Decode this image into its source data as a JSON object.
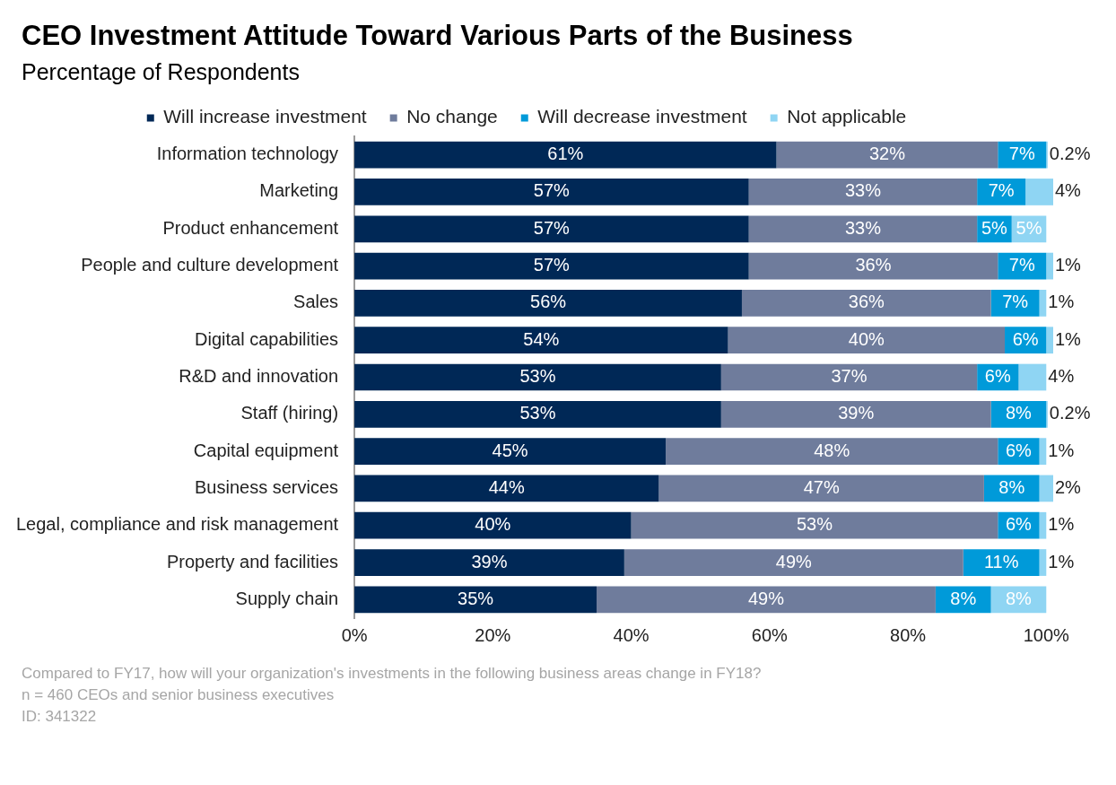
{
  "chart_data": {
    "type": "bar",
    "orientation": "horizontal",
    "stacked": true,
    "title": "CEO Investment Attitude Toward Various Parts of the Business",
    "subtitle": "Percentage of Respondents",
    "categories": [
      "Information technology",
      "Marketing",
      "Product enhancement",
      "People and culture development",
      "Sales",
      "Digital capabilities",
      "R&D and innovation",
      "Staff (hiring)",
      "Capital equipment",
      "Business services",
      "Legal, compliance and risk management",
      "Property and facilities",
      "Supply chain"
    ],
    "series": [
      {
        "name": "Will increase investment",
        "color": "#002856",
        "values": [
          61,
          57,
          57,
          57,
          56,
          54,
          53,
          53,
          45,
          44,
          40,
          39,
          35
        ],
        "value_labels": [
          "61%",
          "57%",
          "57%",
          "57%",
          "56%",
          "54%",
          "53%",
          "53%",
          "45%",
          "44%",
          "40%",
          "39%",
          "35%"
        ]
      },
      {
        "name": "No change",
        "color": "#6f7c9c",
        "values": [
          32,
          33,
          33,
          36,
          36,
          40,
          37,
          39,
          48,
          47,
          53,
          49,
          49
        ],
        "value_labels": [
          "32%",
          "33%",
          "33%",
          "36%",
          "36%",
          "40%",
          "37%",
          "39%",
          "48%",
          "47%",
          "53%",
          "49%",
          "49%"
        ]
      },
      {
        "name": "Will decrease investment",
        "color": "#009ad9",
        "values": [
          7,
          7,
          5,
          7,
          7,
          6,
          6,
          8,
          6,
          8,
          6,
          11,
          8
        ],
        "value_labels": [
          "7%",
          "7%",
          "5%",
          "7%",
          "7%",
          "6%",
          "6%",
          "8%",
          "6%",
          "8%",
          "6%",
          "11%",
          "8%"
        ]
      },
      {
        "name": "Not applicable",
        "color": "#8fd5f3",
        "values": [
          0.2,
          4,
          5,
          1,
          1,
          1,
          4,
          0.2,
          1,
          2,
          1,
          1,
          8
        ],
        "value_labels": [
          "0.2%",
          "4%",
          "5%",
          "1%",
          "1%",
          "1%",
          "4%",
          "0.2%",
          "1%",
          "2%",
          "1%",
          "1%",
          "8%"
        ]
      }
    ],
    "xlim": [
      0,
      101
    ],
    "xticks": [
      {
        "value": 0,
        "label": "0%"
      },
      {
        "value": 20,
        "label": "20%"
      },
      {
        "value": 40,
        "label": "40%"
      },
      {
        "value": 60,
        "label": "60%"
      },
      {
        "value": 80,
        "label": "80%"
      },
      {
        "value": 100,
        "label": "100%"
      }
    ],
    "grid": false,
    "legend": "top",
    "annotations": [
      "Compared to FY17, how will your organization's investments in the following business areas change in FY18?",
      "n = 460 CEOs and senior business executives",
      "ID: 341322"
    ]
  }
}
